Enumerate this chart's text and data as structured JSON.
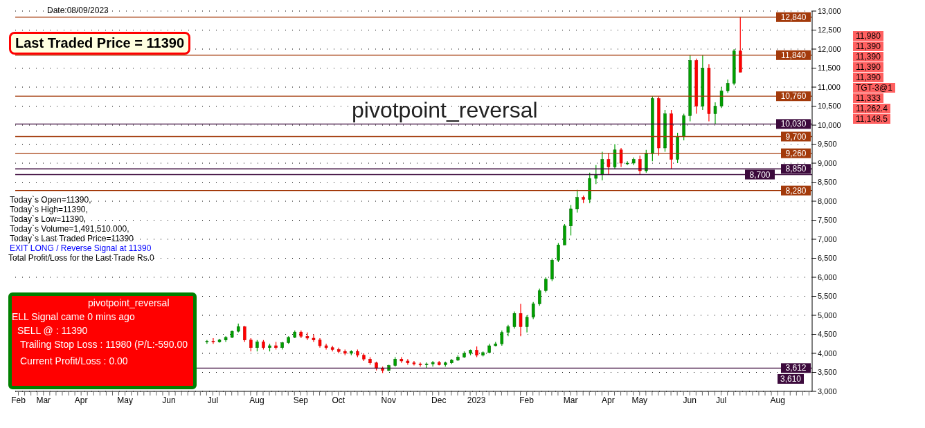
{
  "chart_data": {
    "type": "candlestick",
    "title": "Date:08/09/2023",
    "subtitle": "pivotpoint_reversal",
    "categories": [
      "Feb",
      null,
      null,
      null,
      "Mar",
      null,
      null,
      null,
      null,
      null,
      "Apr",
      null,
      null,
      null,
      null,
      null,
      null,
      "May",
      null,
      null,
      null,
      null,
      null,
      null,
      "Jun",
      null,
      null,
      null,
      null,
      null,
      null,
      "Jul",
      null,
      null,
      null,
      null,
      null,
      null,
      "Aug",
      null,
      null,
      null,
      null,
      null,
      null,
      "Sep",
      null,
      null,
      null,
      null,
      null,
      "Oct",
      null,
      null,
      null,
      null,
      null,
      null,
      null,
      "Nov",
      null,
      null,
      null,
      null,
      null,
      null,
      null,
      "Dec",
      null,
      null,
      null,
      null,
      null,
      "2023",
      null,
      null,
      null,
      null,
      null,
      null,
      null,
      "Feb",
      null,
      null,
      null,
      null,
      null,
      null,
      "Mar",
      null,
      null,
      null,
      null,
      null,
      "Apr",
      null,
      null,
      null,
      null,
      "May",
      null,
      null,
      null,
      null,
      null,
      null,
      null,
      "Jun",
      null,
      null,
      null,
      null,
      "Jul",
      null,
      null,
      null,
      null,
      null,
      null,
      null,
      null,
      "Aug",
      null,
      null,
      null,
      null,
      null
    ],
    "ohlc": [
      null,
      null,
      null,
      null,
      null,
      null,
      null,
      null,
      null,
      null,
      null,
      null,
      null,
      null,
      null,
      null,
      null,
      null,
      null,
      null,
      null,
      null,
      null,
      null,
      null,
      null,
      null,
      null,
      null,
      null,
      [
        4300,
        4350,
        4250,
        4320
      ],
      [
        4320,
        4400,
        4250,
        4300
      ],
      [
        4300,
        4380,
        4280,
        4350
      ],
      [
        4350,
        4450,
        4300,
        4420
      ],
      [
        4420,
        4600,
        4400,
        4580
      ],
      [
        4580,
        4780,
        4550,
        4700
      ],
      [
        4700,
        4720,
        4300,
        4350
      ],
      [
        4350,
        4400,
        4050,
        4150
      ],
      [
        4150,
        4350,
        4050,
        4300
      ],
      [
        4300,
        4350,
        4100,
        4150
      ],
      [
        4150,
        4250,
        4050,
        4200
      ],
      [
        4200,
        4300,
        4100,
        4150
      ],
      [
        4150,
        4300,
        4100,
        4280
      ],
      [
        4280,
        4450,
        4250,
        4420
      ],
      [
        4420,
        4600,
        4400,
        4560
      ],
      [
        4560,
        4600,
        4400,
        4450
      ],
      [
        4450,
        4550,
        4350,
        4400
      ],
      [
        4400,
        4500,
        4300,
        4350
      ],
      [
        4350,
        4400,
        4150,
        4200
      ],
      [
        4200,
        4250,
        4100,
        4150
      ],
      [
        4150,
        4200,
        4050,
        4100
      ],
      [
        4100,
        4150,
        4000,
        4050
      ],
      [
        4050,
        4100,
        3950,
        4000
      ],
      [
        4000,
        4080,
        3950,
        4050
      ],
      [
        4050,
        4100,
        3900,
        3950
      ],
      [
        3950,
        4000,
        3800,
        3850
      ],
      [
        3850,
        3900,
        3700,
        3750
      ],
      [
        3750,
        3780,
        3550,
        3600
      ],
      [
        3600,
        3650,
        3480,
        3550
      ],
      [
        3550,
        3700,
        3530,
        3680
      ],
      [
        3680,
        3900,
        3650,
        3850
      ],
      [
        3850,
        3900,
        3750,
        3800
      ],
      [
        3800,
        3850,
        3700,
        3750
      ],
      [
        3750,
        3800,
        3680,
        3720
      ],
      [
        3720,
        3760,
        3650,
        3700
      ],
      [
        3700,
        3760,
        3610,
        3720
      ],
      [
        3720,
        3800,
        3650,
        3760
      ],
      [
        3760,
        3800,
        3680,
        3700
      ],
      [
        3700,
        3780,
        3650,
        3750
      ],
      [
        3750,
        3850,
        3720,
        3820
      ],
      [
        3820,
        3950,
        3800,
        3900
      ],
      [
        3900,
        4050,
        3880,
        4000
      ],
      [
        4000,
        4100,
        3950,
        4080
      ],
      [
        4080,
        4180,
        3900,
        3950
      ],
      [
        3950,
        4050,
        3920,
        4020
      ],
      [
        4020,
        4250,
        4000,
        4200
      ],
      [
        4200,
        4300,
        4180,
        4250
      ],
      [
        4250,
        4600,
        4200,
        4550
      ],
      [
        4550,
        4750,
        4450,
        4700
      ],
      [
        4700,
        5100,
        4650,
        5050
      ],
      [
        5050,
        5300,
        4450,
        4700
      ],
      [
        4700,
        5000,
        4550,
        4950
      ],
      [
        4950,
        5350,
        4900,
        5300
      ],
      [
        5300,
        5700,
        5250,
        5650
      ],
      [
        5650,
        6000,
        5600,
        5950
      ],
      [
        5950,
        6500,
        5900,
        6450
      ],
      [
        6450,
        6900,
        6400,
        6850
      ],
      [
        6850,
        7400,
        6850,
        7350
      ],
      [
        7350,
        7900,
        7100,
        7800
      ],
      [
        7800,
        8300,
        7700,
        8100
      ],
      [
        8100,
        8150,
        7950,
        8050
      ],
      [
        8050,
        8750,
        7950,
        8600
      ],
      [
        8600,
        8950,
        8450,
        8700
      ],
      [
        8700,
        9300,
        8550,
        9100
      ],
      [
        9100,
        9260,
        8700,
        8900
      ],
      [
        8900,
        9500,
        8850,
        9350
      ],
      [
        9350,
        9400,
        8900,
        9000
      ],
      [
        9000,
        9050,
        8950,
        9000
      ],
      [
        9000,
        9150,
        8950,
        9100
      ],
      [
        9100,
        9200,
        8700,
        8800
      ],
      [
        8800,
        9350,
        8750,
        9250
      ],
      [
        9250,
        10760,
        9050,
        10700
      ],
      [
        10700,
        10750,
        9200,
        9400
      ],
      [
        9400,
        10400,
        9300,
        10300
      ],
      [
        10300,
        10400,
        8850,
        9100
      ],
      [
        9100,
        9800,
        9000,
        9700
      ],
      [
        9700,
        10300,
        9600,
        10250
      ],
      [
        10250,
        11840,
        10100,
        11700
      ],
      [
        11700,
        11750,
        10300,
        10500
      ],
      [
        10500,
        11840,
        10400,
        11500
      ],
      [
        11500,
        11600,
        10100,
        10300
      ],
      [
        10300,
        10600,
        10030,
        10500
      ],
      [
        10500,
        11000,
        10450,
        10900
      ],
      [
        10900,
        11200,
        10850,
        11100
      ],
      [
        11100,
        12000,
        11050,
        11950
      ],
      [
        11950,
        12840,
        11390,
        11390
      ],
      null,
      null,
      null,
      null,
      null,
      null,
      null,
      null,
      null,
      null,
      null
    ],
    "ylim": [
      3000,
      13000
    ],
    "yticks": [
      {
        "value": 3000,
        "label": "3,000"
      },
      {
        "value": 3500,
        "label": "3,500"
      },
      {
        "value": 4000,
        "label": "4,000"
      },
      {
        "value": 4500,
        "label": "4,500"
      },
      {
        "value": 5000,
        "label": "5,000"
      },
      {
        "value": 5500,
        "label": "5,500"
      },
      {
        "value": 6000,
        "label": "6,000"
      },
      {
        "value": 6500,
        "label": "6,500"
      },
      {
        "value": 7000,
        "label": "7,000"
      },
      {
        "value": 7500,
        "label": "7,500"
      },
      {
        "value": 8000,
        "label": "8,000"
      },
      {
        "value": 8500,
        "label": "8,500"
      },
      {
        "value": 9000,
        "label": "9,000"
      },
      {
        "value": 9500,
        "label": "9,500"
      },
      {
        "value": 10000,
        "label": "10,000"
      },
      {
        "value": 10500,
        "label": "10,500"
      },
      {
        "value": 11000,
        "label": "11,000"
      },
      {
        "value": 11500,
        "label": "11,500"
      },
      {
        "value": 12000,
        "label": "12,000"
      },
      {
        "value": 12500,
        "label": "12,500"
      },
      {
        "value": 13000,
        "label": "13,000"
      }
    ],
    "grid": "y",
    "ref_lines": [
      {
        "axis": "y",
        "value": 12840,
        "label": "12,840",
        "color": "#a33a0b"
      },
      {
        "axis": "y",
        "value": 11840,
        "label": "11,840",
        "color": "#a33a0b"
      },
      {
        "axis": "y",
        "value": 10760,
        "label": "10,760",
        "color": "#a33a0b"
      },
      {
        "axis": "y",
        "value": 10030,
        "label": "10,030",
        "color": "#3c0a3c"
      },
      {
        "axis": "y",
        "value": 9700,
        "label": "9,700",
        "color": "#a33a0b"
      },
      {
        "axis": "y",
        "value": 9260,
        "label": "9,260",
        "color": "#a33a0b"
      },
      {
        "axis": "y",
        "value": 8850,
        "label": "8,850",
        "color": "#3c0a3c"
      },
      {
        "axis": "y",
        "value": 8700,
        "label": "8,700",
        "color": "#3c0a3c"
      },
      {
        "axis": "y",
        "value": 8280,
        "label": "8,280",
        "color": "#a33a0b"
      },
      {
        "axis": "y",
        "value": 3612,
        "label": "3,612",
        "color": "#3c0a3c"
      }
    ],
    "annotations": [
      "Last Traded Price = 11390",
      "Today`s Open=11390,",
      "Today`s High=11390,",
      "Today`s Low=11390,",
      "Today`s Volume=1,491,510.000,",
      "Today`s Last Traded Price=11390",
      "EXIT LONG / Reverse Signal at 11390",
      "Total Profit/Loss for the Last Trade Rs.0",
      "pivotpoint_reversal",
      "ELL Signal came 0 mins ago",
      "SELL @ : 11390",
      "Trailing Stop Loss : 11980 (P/L:-590.00",
      "Current Profit/Loss : 0.00",
      "11,980",
      "11,390",
      "11,390",
      "11,390",
      "11,390",
      "TGT-3@1",
      "11,333",
      "11,262.4",
      "11,148.5",
      "3,610"
    ]
  }
}
